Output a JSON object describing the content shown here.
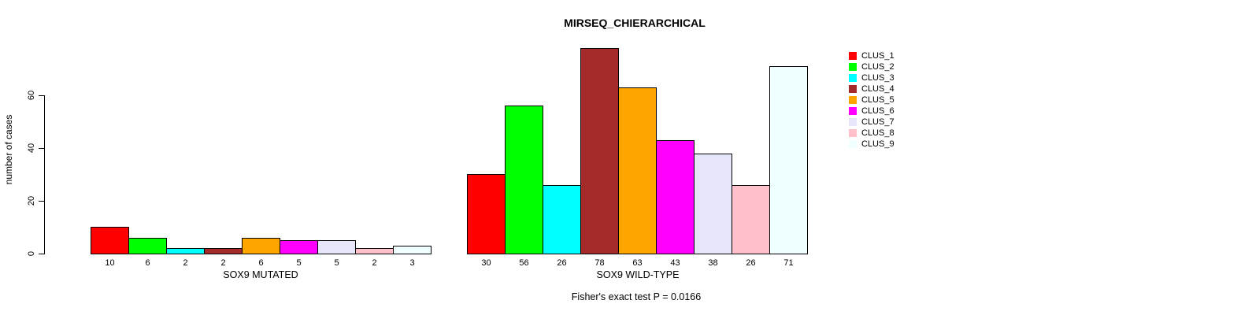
{
  "chart_data": {
    "type": "bar",
    "title": "MIRSEQ_CHIERARCHICAL",
    "ylabel": "number of cases",
    "ylim": [
      0,
      80
    ],
    "yticks": [
      0,
      20,
      40,
      60
    ],
    "grid": false,
    "legend_position": "right",
    "categories": [
      "CLUS_1",
      "CLUS_2",
      "CLUS_3",
      "CLUS_4",
      "CLUS_5",
      "CLUS_6",
      "CLUS_7",
      "CLUS_8",
      "CLUS_9"
    ],
    "colors": [
      "#ff0000",
      "#00ff00",
      "#00ffff",
      "#a52a2a",
      "#ffa500",
      "#ff00ff",
      "#e6e6fa",
      "#ffc0cb",
      "#f0ffff"
    ],
    "groups": [
      {
        "xlabel": "SOX9 MUTATED",
        "values": [
          10,
          6,
          2,
          2,
          6,
          5,
          5,
          2,
          3
        ]
      },
      {
        "xlabel": "SOX9 WILD-TYPE",
        "values": [
          30,
          56,
          26,
          78,
          63,
          43,
          38,
          26,
          71
        ]
      }
    ],
    "annotation": "Fisher's exact test P = 0.0166"
  }
}
